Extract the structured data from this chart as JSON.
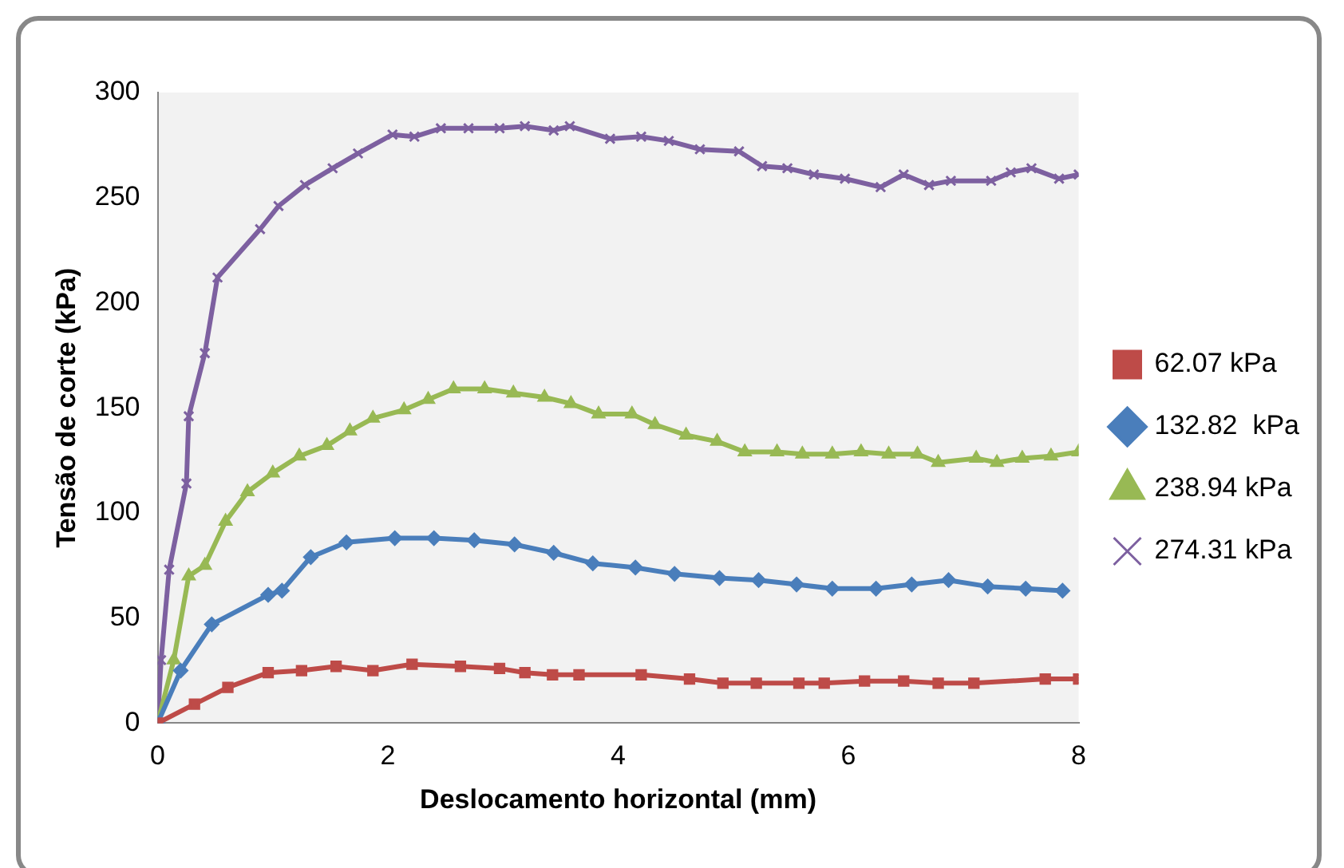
{
  "chart_data": {
    "type": "line",
    "xlabel": "Deslocamento horizontal (mm)",
    "ylabel": "Tensão de corte (kPa)",
    "xlim": [
      0,
      8
    ],
    "xticks": [
      0,
      2,
      4,
      6,
      8
    ],
    "ylim": [
      0,
      300
    ],
    "yticks": [
      0,
      50,
      100,
      150,
      200,
      250,
      300
    ],
    "grid": false,
    "legend": "right",
    "line_style": "solid",
    "series": [
      {
        "name": "62.07 kPa",
        "color": "#be4b48",
        "marker": "square",
        "x": [
          0,
          0.32,
          0.61,
          0.96,
          1.25,
          1.55,
          1.87,
          2.21,
          2.63,
          2.97,
          3.19,
          3.43,
          3.66,
          4.2,
          4.62,
          4.91,
          5.2,
          5.57,
          5.79,
          6.14,
          6.48,
          6.78,
          7.09,
          7.71,
          8
        ],
        "values": [
          0,
          9,
          17,
          24,
          25,
          27,
          25,
          28,
          27,
          26,
          24,
          23,
          23,
          23,
          21,
          19,
          19,
          19,
          19,
          20,
          20,
          19,
          19,
          21,
          21
        ]
      },
      {
        "name": "132.82  kPa",
        "color": "#4a7ebb",
        "marker": "diamond",
        "x": [
          0,
          0.2,
          0.47,
          0.96,
          1.08,
          1.33,
          1.64,
          2.06,
          2.4,
          2.75,
          3.1,
          3.44,
          3.78,
          4.15,
          4.49,
          4.88,
          5.22,
          5.55,
          5.86,
          6.24,
          6.55,
          6.87,
          7.21,
          7.54,
          7.86
        ],
        "values": [
          0,
          25,
          47,
          61,
          63,
          79,
          86,
          88,
          88,
          87,
          85,
          81,
          76,
          74,
          71,
          69,
          68,
          66,
          64,
          64,
          66,
          68,
          65,
          64,
          63
        ]
      },
      {
        "name": "238.94 kPa",
        "color": "#98b954",
        "marker": "triangle",
        "x": [
          0,
          0.14,
          0.27,
          0.41,
          0.59,
          0.78,
          1.0,
          1.23,
          1.47,
          1.67,
          1.87,
          2.14,
          2.35,
          2.57,
          2.84,
          3.09,
          3.36,
          3.59,
          3.83,
          4.12,
          4.32,
          4.59,
          4.86,
          5.1,
          5.38,
          5.6,
          5.86,
          6.11,
          6.35,
          6.6,
          6.78,
          7.11,
          7.29,
          7.51,
          7.76,
          8
        ],
        "values": [
          0,
          30,
          70,
          75,
          96,
          110,
          119,
          127,
          132,
          139,
          145,
          149,
          154,
          159,
          159,
          157,
          155,
          152,
          147,
          147,
          142,
          137,
          134,
          129,
          129,
          128,
          128,
          129,
          128,
          128,
          124,
          126,
          124,
          126,
          127,
          129
        ]
      },
      {
        "name": "274.31 kPa",
        "color": "#7d60a0",
        "marker": "cross",
        "x": [
          0,
          0.03,
          0.1,
          0.25,
          0.27,
          0.41,
          0.52,
          0.89,
          1.05,
          1.28,
          1.52,
          1.74,
          2.04,
          2.23,
          2.46,
          2.7,
          2.97,
          3.19,
          3.44,
          3.58,
          3.93,
          4.2,
          4.44,
          4.71,
          5.05,
          5.25,
          5.47,
          5.7,
          5.97,
          6.28,
          6.48,
          6.7,
          6.89,
          7.24,
          7.41,
          7.59,
          7.83,
          8
        ],
        "values": [
          0,
          30,
          73,
          114,
          146,
          176,
          212,
          235,
          246,
          256,
          264,
          271,
          280,
          279,
          283,
          283,
          283,
          284,
          282,
          284,
          278,
          279,
          277,
          273,
          272,
          265,
          264,
          261,
          259,
          255,
          261,
          256,
          258,
          258,
          262,
          264,
          259,
          261
        ]
      }
    ]
  }
}
